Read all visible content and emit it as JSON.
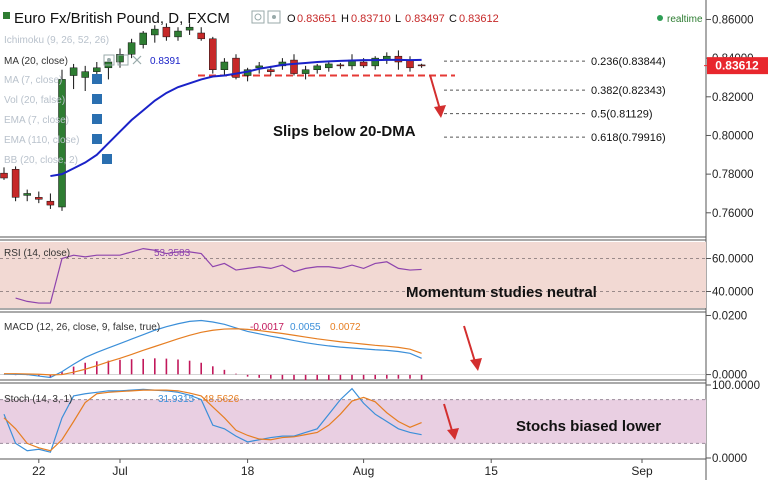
{
  "header": {
    "symbol": "Euro Fx/British Pound, D, FXCM",
    "ohlc": [
      {
        "label": "O",
        "value": "0.83651"
      },
      {
        "label": "H",
        "value": "0.83710"
      },
      {
        "label": "L",
        "value": "0.83497"
      },
      {
        "label": "C",
        "value": "0.83612"
      }
    ],
    "realtime_label": "realtime"
  },
  "indicator_labels": {
    "ichimoku": "Ichimoku (9, 26, 52, 26)",
    "ma20": "MA (20, close)",
    "ma20_value": "0.8391",
    "ma7": "MA (7, close)",
    "vol": "Vol (20, false)",
    "ema7": "EMA (7, close)",
    "ema110": "EMA (110, close)",
    "bb": "BB (20, close, 2)"
  },
  "annotations": {
    "main": "Slips below 20-DMA",
    "rsi": "Momentum studies neutral",
    "stoch": "Stochs biased lower"
  },
  "colors": {
    "bull": "#2e7d32",
    "bear": "#c62828",
    "ma": "#1a22c8",
    "price_tag": "#e8272d",
    "rsi_line": "#8e44ad",
    "rsi_band": "#f2d9d3",
    "macd_line": "#3b8fd9",
    "signal_line": "#e67e22",
    "hist": "#c2185b",
    "stoch_band": "#e9cfe2",
    "arrow": "#d32f2f"
  },
  "chart_data": [
    {
      "type": "candlestick",
      "panel": "price",
      "ylim": [
        0.748,
        0.868
      ],
      "y_ticks": [
        "0.86000",
        "0.84000",
        "0.82000",
        "0.80000",
        "0.78000",
        "0.76000"
      ],
      "y_tick_values": [
        0.86,
        0.84,
        0.82,
        0.8,
        0.78,
        0.76
      ],
      "last_price": "0.83612",
      "last_price_value": 0.83612,
      "x_tick_labels": [
        "22",
        "Jul",
        "18",
        "Aug",
        "15",
        "Sep"
      ],
      "x_tick_index": [
        3,
        10,
        21,
        31,
        42,
        55
      ],
      "candles": [
        {
          "o": 0.7805,
          "h": 0.7835,
          "l": 0.777,
          "c": 0.778
        },
        {
          "o": 0.7825,
          "h": 0.784,
          "l": 0.766,
          "c": 0.768
        },
        {
          "o": 0.769,
          "h": 0.772,
          "l": 0.766,
          "c": 0.77
        },
        {
          "o": 0.768,
          "h": 0.771,
          "l": 0.765,
          "c": 0.767
        },
        {
          "o": 0.766,
          "h": 0.77,
          "l": 0.762,
          "c": 0.764
        },
        {
          "o": 0.763,
          "h": 0.834,
          "l": 0.761,
          "c": 0.829
        },
        {
          "o": 0.831,
          "h": 0.837,
          "l": 0.824,
          "c": 0.835
        },
        {
          "o": 0.83,
          "h": 0.836,
          "l": 0.823,
          "c": 0.833
        },
        {
          "o": 0.833,
          "h": 0.838,
          "l": 0.828,
          "c": 0.835
        },
        {
          "o": 0.835,
          "h": 0.84,
          "l": 0.829,
          "c": 0.838
        },
        {
          "o": 0.838,
          "h": 0.845,
          "l": 0.835,
          "c": 0.842
        },
        {
          "o": 0.842,
          "h": 0.85,
          "l": 0.84,
          "c": 0.848
        },
        {
          "o": 0.847,
          "h": 0.854,
          "l": 0.845,
          "c": 0.853
        },
        {
          "o": 0.852,
          "h": 0.857,
          "l": 0.848,
          "c": 0.855
        },
        {
          "o": 0.856,
          "h": 0.858,
          "l": 0.849,
          "c": 0.851
        },
        {
          "o": 0.851,
          "h": 0.856,
          "l": 0.849,
          "c": 0.854
        },
        {
          "o": 0.8545,
          "h": 0.858,
          "l": 0.852,
          "c": 0.856
        },
        {
          "o": 0.853,
          "h": 0.856,
          "l": 0.849,
          "c": 0.85
        },
        {
          "o": 0.85,
          "h": 0.851,
          "l": 0.832,
          "c": 0.834
        },
        {
          "o": 0.834,
          "h": 0.84,
          "l": 0.831,
          "c": 0.838
        },
        {
          "o": 0.84,
          "h": 0.842,
          "l": 0.829,
          "c": 0.83
        },
        {
          "o": 0.831,
          "h": 0.835,
          "l": 0.828,
          "c": 0.834
        },
        {
          "o": 0.835,
          "h": 0.838,
          "l": 0.832,
          "c": 0.836
        },
        {
          "o": 0.834,
          "h": 0.836,
          "l": 0.831,
          "c": 0.833
        },
        {
          "o": 0.836,
          "h": 0.84,
          "l": 0.834,
          "c": 0.838
        },
        {
          "o": 0.839,
          "h": 0.842,
          "l": 0.831,
          "c": 0.832
        },
        {
          "o": 0.832,
          "h": 0.836,
          "l": 0.829,
          "c": 0.834
        },
        {
          "o": 0.834,
          "h": 0.837,
          "l": 0.832,
          "c": 0.836
        },
        {
          "o": 0.835,
          "h": 0.838,
          "l": 0.833,
          "c": 0.837
        },
        {
          "o": 0.8365,
          "h": 0.8375,
          "l": 0.8345,
          "c": 0.836
        },
        {
          "o": 0.836,
          "h": 0.842,
          "l": 0.834,
          "c": 0.839
        },
        {
          "o": 0.838,
          "h": 0.84,
          "l": 0.835,
          "c": 0.836
        },
        {
          "o": 0.836,
          "h": 0.841,
          "l": 0.834,
          "c": 0.84
        },
        {
          "o": 0.839,
          "h": 0.843,
          "l": 0.837,
          "c": 0.841
        },
        {
          "o": 0.841,
          "h": 0.844,
          "l": 0.834,
          "c": 0.838
        },
        {
          "o": 0.839,
          "h": 0.841,
          "l": 0.833,
          "c": 0.835
        },
        {
          "o": 0.8365,
          "h": 0.8371,
          "l": 0.835,
          "c": 0.8361
        }
      ],
      "ma20": [
        null,
        null,
        null,
        null,
        0.779,
        0.78,
        0.783,
        0.786,
        0.79,
        0.796,
        0.802,
        0.808,
        0.813,
        0.818,
        0.822,
        0.825,
        0.827,
        0.829,
        0.8305,
        0.831,
        0.832,
        0.833,
        0.8345,
        0.8355,
        0.8365,
        0.837,
        0.8375,
        0.838,
        0.8383,
        0.8386,
        0.8388,
        0.839,
        0.839,
        0.8391,
        0.8391,
        0.839,
        0.8391
      ],
      "fibonacci": [
        {
          "label": "0.236(0.83844)",
          "value": 0.83844
        },
        {
          "label": "0.382(0.82343)",
          "value": 0.82343
        },
        {
          "label": "0.5(0.81129)",
          "value": 0.81129
        },
        {
          "label": "0.618(0.79916)",
          "value": 0.79916
        }
      ],
      "support_level": 0.831
    },
    {
      "type": "line",
      "panel": "rsi",
      "title": "RSI (14, close)",
      "value_label": "53.3583",
      "ylim": [
        30,
        70
      ],
      "y_ticks": [
        "60.0000",
        "40.0000"
      ],
      "y_tick_values": [
        60,
        40
      ],
      "band": [
        30,
        70
      ],
      "values": [
        null,
        36,
        34,
        33,
        33,
        60,
        62,
        61,
        62,
        62,
        62,
        64,
        66,
        65,
        63,
        64,
        64,
        63,
        55,
        57,
        53,
        54,
        55,
        54,
        56,
        52,
        54,
        55,
        55,
        54,
        56,
        54,
        57,
        58,
        54,
        53,
        53.36
      ]
    },
    {
      "type": "line",
      "panel": "macd",
      "title": "MACD (12, 26, close, 9, false, true)",
      "value_labels": [
        "-0.0017",
        "0.0055",
        "0.0072"
      ],
      "ylim": [
        -0.0015,
        0.0205
      ],
      "y_ticks": [
        "0.0200",
        "0.0000"
      ],
      "y_tick_values": [
        0.02,
        0.0
      ],
      "series": [
        {
          "name": "MACD",
          "values": [
            0.0002,
            0.0001,
            0.0,
            -0.0005,
            -0.001,
            0.001,
            0.0035,
            0.0058,
            0.0075,
            0.009,
            0.0105,
            0.012,
            0.0135,
            0.015,
            0.0162,
            0.0172,
            0.018,
            0.0183,
            0.0178,
            0.017,
            0.0158,
            0.0146,
            0.0138,
            0.013,
            0.0123,
            0.0115,
            0.0108,
            0.0102,
            0.0097,
            0.0093,
            0.009,
            0.0087,
            0.0084,
            0.0082,
            0.0078,
            0.0072,
            0.0055
          ]
        },
        {
          "name": "Signal",
          "values": [
            0.0003,
            0.0003,
            0.0002,
            0.0001,
            -0.0001,
            0.0,
            0.0008,
            0.0018,
            0.003,
            0.0043,
            0.0055,
            0.0068,
            0.0082,
            0.0095,
            0.0108,
            0.0121,
            0.0133,
            0.0143,
            0.015,
            0.0154,
            0.0155,
            0.0153,
            0.0149,
            0.0144,
            0.0139,
            0.0133,
            0.0127,
            0.0121,
            0.0116,
            0.0111,
            0.0107,
            0.0103,
            0.0099,
            0.0096,
            0.0092,
            0.0086,
            0.0072
          ]
        },
        {
          "name": "Histogram",
          "values": [
            -0.0001,
            -0.0002,
            -0.0002,
            -0.0006,
            -0.0009,
            0.001,
            0.0027,
            0.004,
            0.0045,
            0.0047,
            0.005,
            0.0052,
            0.0053,
            0.0055,
            0.0054,
            0.0051,
            0.0047,
            0.004,
            0.0028,
            0.0016,
            0.0003,
            -0.0007,
            -0.0011,
            -0.0014,
            -0.0016,
            -0.0018,
            -0.0019,
            -0.0019,
            -0.0019,
            -0.0018,
            -0.0017,
            -0.0016,
            -0.0015,
            -0.0014,
            -0.0014,
            -0.0014,
            -0.0017
          ]
        }
      ]
    },
    {
      "type": "line",
      "panel": "stoch",
      "title": "Stoch (14, 3, 1)",
      "value_labels": [
        "31.9315",
        "48.5626"
      ],
      "ylim": [
        0,
        100
      ],
      "y_ticks": [
        "100.0000",
        "0.0000"
      ],
      "y_tick_values": [
        100,
        0
      ],
      "band": [
        20,
        80
      ],
      "series": [
        {
          "name": "%K",
          "values": [
            60,
            20,
            10,
            12,
            8,
            55,
            85,
            88,
            90,
            92,
            92,
            93,
            94,
            93,
            92,
            90,
            86,
            80,
            45,
            40,
            30,
            22,
            25,
            28,
            30,
            30,
            35,
            40,
            60,
            80,
            95,
            75,
            60,
            50,
            40,
            35,
            31.93
          ]
        },
        {
          "name": "%D",
          "values": [
            55,
            40,
            20,
            14,
            10,
            25,
            50,
            76,
            88,
            90,
            91,
            92,
            93,
            93,
            93,
            92,
            89,
            85,
            70,
            55,
            38,
            31,
            26,
            25,
            28,
            29,
            32,
            35,
            45,
            60,
            78,
            83,
            77,
            62,
            50,
            42,
            48.56
          ]
        }
      ]
    }
  ]
}
